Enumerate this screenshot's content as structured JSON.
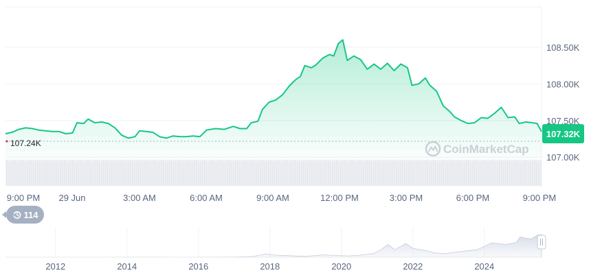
{
  "chart_data": [
    {
      "type": "area",
      "x_ticks": [
        "9:00 PM",
        "29 Jun",
        "3:00 AM",
        "6:00 AM",
        "9:00 AM",
        "12:00 PM",
        "3:00 PM",
        "6:00 PM",
        "9:00 PM"
      ],
      "y_ticks": [
        "108.50K",
        "108.00K",
        "107.50K",
        "107.00K"
      ],
      "y_tick_values": [
        108500,
        108000,
        107500,
        107000
      ],
      "ylim": [
        106600,
        109050
      ],
      "xlim": [
        0,
        24
      ],
      "x_unit": "hours since the first 9:00 PM tick",
      "values": [
        [
          0,
          107320
        ],
        [
          0.3,
          107340
        ],
        [
          0.6,
          107380
        ],
        [
          0.9,
          107400
        ],
        [
          1.2,
          107390
        ],
        [
          1.5,
          107370
        ],
        [
          1.8,
          107360
        ],
        [
          2.1,
          107350
        ],
        [
          2.4,
          107350
        ],
        [
          2.7,
          107320
        ],
        [
          3.0,
          107330
        ],
        [
          3.2,
          107470
        ],
        [
          3.5,
          107460
        ],
        [
          3.7,
          107520
        ],
        [
          4.0,
          107470
        ],
        [
          4.3,
          107480
        ],
        [
          4.6,
          107460
        ],
        [
          4.9,
          107400
        ],
        [
          5.2,
          107300
        ],
        [
          5.5,
          107260
        ],
        [
          5.8,
          107280
        ],
        [
          6.0,
          107360
        ],
        [
          6.3,
          107350
        ],
        [
          6.6,
          107340
        ],
        [
          6.9,
          107280
        ],
        [
          7.2,
          107260
        ],
        [
          7.5,
          107290
        ],
        [
          7.8,
          107280
        ],
        [
          8.1,
          107280
        ],
        [
          8.4,
          107290
        ],
        [
          8.7,
          107280
        ],
        [
          9.0,
          107370
        ],
        [
          9.4,
          107390
        ],
        [
          9.8,
          107380
        ],
        [
          10.2,
          107420
        ],
        [
          10.5,
          107390
        ],
        [
          10.8,
          107390
        ],
        [
          11.0,
          107470
        ],
        [
          11.3,
          107490
        ],
        [
          11.5,
          107650
        ],
        [
          11.8,
          107750
        ],
        [
          12.1,
          107780
        ],
        [
          12.4,
          107850
        ],
        [
          12.7,
          107970
        ],
        [
          13.0,
          108060
        ],
        [
          13.2,
          108100
        ],
        [
          13.4,
          108250
        ],
        [
          13.7,
          108220
        ],
        [
          13.9,
          108260
        ],
        [
          14.2,
          108350
        ],
        [
          14.5,
          108400
        ],
        [
          14.7,
          108380
        ],
        [
          14.9,
          108550
        ],
        [
          15.1,
          108600
        ],
        [
          15.3,
          108320
        ],
        [
          15.6,
          108380
        ],
        [
          15.9,
          108330
        ],
        [
          16.2,
          108200
        ],
        [
          16.5,
          108270
        ],
        [
          16.8,
          108200
        ],
        [
          17.1,
          108280
        ],
        [
          17.4,
          108180
        ],
        [
          17.7,
          108270
        ],
        [
          18.0,
          108220
        ],
        [
          18.2,
          107980
        ],
        [
          18.5,
          108000
        ],
        [
          18.8,
          108080
        ],
        [
          19.0,
          107980
        ],
        [
          19.3,
          107900
        ],
        [
          19.6,
          107700
        ],
        [
          19.9,
          107620
        ],
        [
          20.1,
          107550
        ],
        [
          20.4,
          107500
        ],
        [
          20.7,
          107460
        ],
        [
          21.0,
          107470
        ],
        [
          21.3,
          107540
        ],
        [
          21.6,
          107530
        ],
        [
          21.9,
          107600
        ],
        [
          22.2,
          107680
        ],
        [
          22.5,
          107540
        ],
        [
          22.8,
          107550
        ],
        [
          23.0,
          107460
        ],
        [
          23.3,
          107480
        ],
        [
          23.6,
          107470
        ],
        [
          23.8,
          107460
        ],
        [
          24.0,
          107350
        ]
      ],
      "volume_shown": true,
      "grid": true
    },
    {
      "type": "area",
      "x_ticks": [
        "2012",
        "2014",
        "2016",
        "2018",
        "2020",
        "2022",
        "2024"
      ],
      "x_tick_values": [
        2012,
        2014,
        2016,
        2018,
        2020,
        2022,
        2024
      ],
      "xlim": [
        2010.6,
        2025.6
      ],
      "ylim": [
        0,
        120000
      ],
      "values": [
        [
          2010.6,
          0
        ],
        [
          2013.0,
          100
        ],
        [
          2013.8,
          800
        ],
        [
          2014.5,
          600
        ],
        [
          2015.5,
          300
        ],
        [
          2016.5,
          700
        ],
        [
          2017.0,
          1000
        ],
        [
          2017.5,
          3000
        ],
        [
          2017.9,
          15000
        ],
        [
          2018.1,
          10000
        ],
        [
          2018.5,
          7000
        ],
        [
          2019.0,
          3800
        ],
        [
          2019.5,
          11000
        ],
        [
          2019.8,
          8000
        ],
        [
          2020.2,
          6000
        ],
        [
          2020.5,
          9500
        ],
        [
          2020.9,
          17000
        ],
        [
          2021.1,
          35000
        ],
        [
          2021.3,
          60000
        ],
        [
          2021.5,
          35000
        ],
        [
          2021.8,
          65000
        ],
        [
          2022.0,
          42000
        ],
        [
          2022.4,
          30000
        ],
        [
          2022.6,
          20000
        ],
        [
          2022.9,
          16500
        ],
        [
          2023.2,
          24000
        ],
        [
          2023.5,
          30000
        ],
        [
          2023.8,
          35000
        ],
        [
          2024.2,
          68000
        ],
        [
          2024.6,
          60000
        ],
        [
          2024.9,
          70000
        ],
        [
          2025.0,
          95000
        ],
        [
          2025.3,
          86000
        ],
        [
          2025.5,
          105000
        ],
        [
          2025.6,
          107320
        ]
      ]
    }
  ],
  "open_price_label": "107.24K",
  "current_price_label": "107.32K",
  "watermark": "CoinMarketCap",
  "history_count": "114",
  "colors": {
    "line": "#16c784",
    "fill_top": "#16c784",
    "axis_text": "#58667e",
    "grid": "#eff2f5",
    "badge": "#16c784",
    "open_dot": "#ea3943"
  }
}
